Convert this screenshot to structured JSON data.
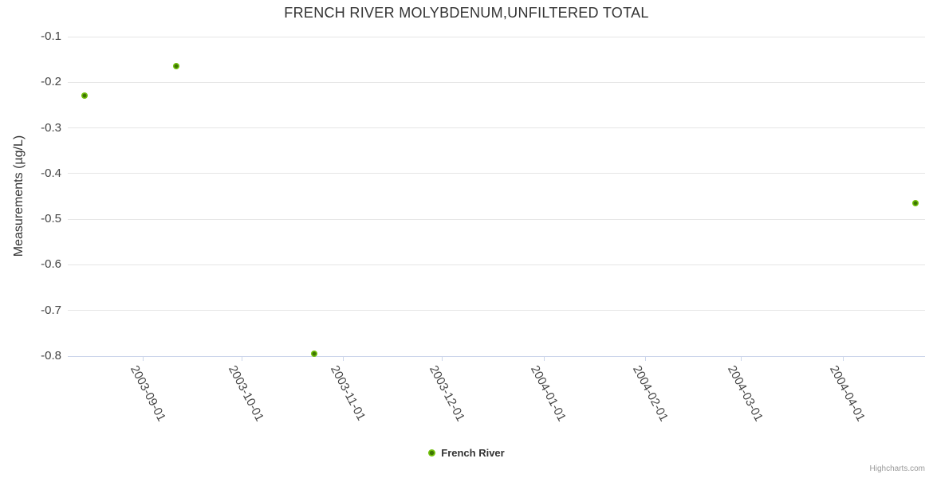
{
  "credit": "Highcharts.com",
  "chart_data": {
    "type": "scatter",
    "title": "FRENCH RIVER MOLYBDENUM,UNFILTERED TOTAL",
    "xlabel": "",
    "ylabel": "Measurements (µg/L)",
    "ylim": [
      -0.8,
      -0.1
    ],
    "y_ticks": [
      -0.1,
      -0.2,
      -0.3,
      -0.4,
      -0.5,
      -0.6,
      -0.7,
      -0.8
    ],
    "x_ticks": [
      "2003-09-01",
      "2003-10-01",
      "2003-11-01",
      "2003-12-01",
      "2004-01-01",
      "2004-02-01",
      "2004-03-01",
      "2004-04-01"
    ],
    "x_range": [
      "2003-08-09",
      "2004-04-26"
    ],
    "grid": "horizontal-only",
    "legend_position": "bottom-center",
    "colors": {
      "grid_line": "#e6e6e6",
      "axis_line": "#ccd6eb",
      "title_text": "#333333",
      "tick_text": "#444444",
      "credit_text": "#999999"
    },
    "series": [
      {
        "name": "French River",
        "color": "#70bf0a",
        "marker_core": "#3e7502",
        "points": [
          {
            "x": "2003-08-14",
            "y": -0.23
          },
          {
            "x": "2003-09-11",
            "y": -0.165
          },
          {
            "x": "2003-10-23",
            "y": -0.795
          },
          {
            "x": "2004-04-23",
            "y": -0.465
          }
        ]
      }
    ]
  }
}
